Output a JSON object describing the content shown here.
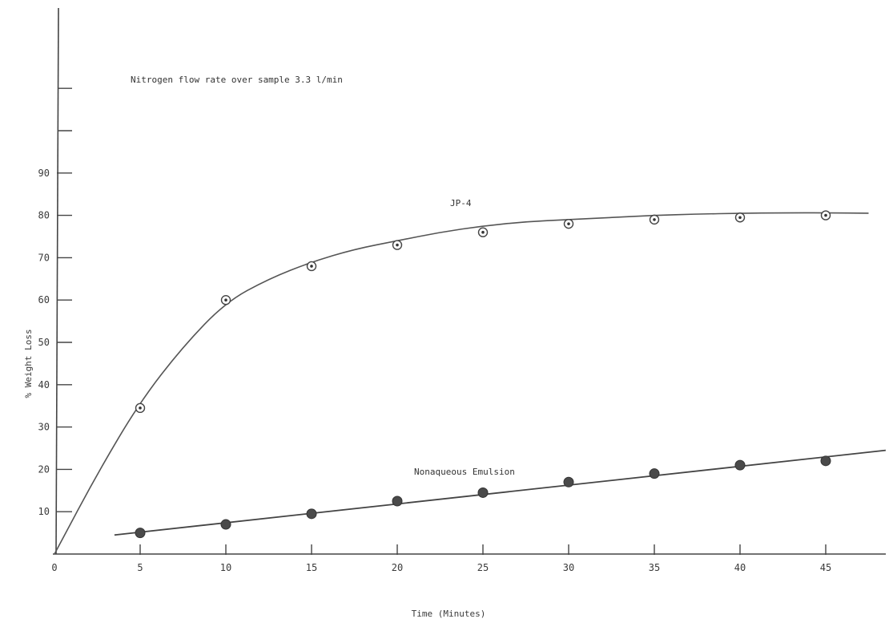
{
  "chart_data": {
    "type": "scatter",
    "title": "",
    "annotation": "Nitrogen flow rate over sample 3.3 l/min",
    "xlabel": "Time (Minutes)",
    "ylabel": "% Weight Loss",
    "xlim": [
      0,
      49
    ],
    "ylim": [
      0,
      130
    ],
    "x_ticks": [
      0,
      5,
      10,
      15,
      20,
      25,
      30,
      35,
      40,
      45
    ],
    "x_tick_labels": [
      "0",
      "5",
      "10",
      "15",
      "20",
      "25",
      "30",
      "35",
      "40",
      "45"
    ],
    "y_ticks": [
      10,
      20,
      30,
      40,
      50,
      60,
      70,
      80,
      90
    ],
    "y_tick_labels": [
      "10",
      "20",
      "30",
      "40",
      "50",
      "60",
      "70",
      "80",
      "90"
    ],
    "y_unlabeled_ticks": [
      100,
      110
    ],
    "grid": false,
    "legend": "none",
    "series": [
      {
        "name": "JP-4",
        "marker": "circle-dot",
        "color": "#555555",
        "x": [
          5,
          10,
          15,
          20,
          25,
          30,
          35,
          40,
          45
        ],
        "y": [
          34.5,
          60,
          68,
          73,
          76,
          78,
          79,
          79.5,
          80
        ],
        "fit_curve": {
          "x": [
            0,
            2.5,
            5,
            7.5,
            10,
            12.5,
            15,
            17.5,
            20,
            22.5,
            25,
            27.5,
            30,
            32.5,
            35,
            37.5,
            40,
            42.5,
            45,
            47.5
          ],
          "y": [
            0,
            19,
            36,
            49,
            59.5,
            65,
            69,
            72,
            74,
            76,
            77.5,
            78.5,
            79,
            79.5,
            80,
            80.3,
            80.5,
            80.6,
            80.6,
            80.5
          ]
        }
      },
      {
        "name": "Nonaqueous Emulsion",
        "marker": "filled-circle",
        "color": "#444444",
        "x": [
          5,
          10,
          15,
          20,
          25,
          30,
          35,
          40,
          45
        ],
        "y": [
          5,
          7,
          9.5,
          12.5,
          14.5,
          17,
          19,
          21,
          22
        ],
        "fit_line": {
          "x": [
            3.5,
            48.5
          ],
          "y": [
            4.5,
            24.5
          ]
        }
      }
    ]
  }
}
